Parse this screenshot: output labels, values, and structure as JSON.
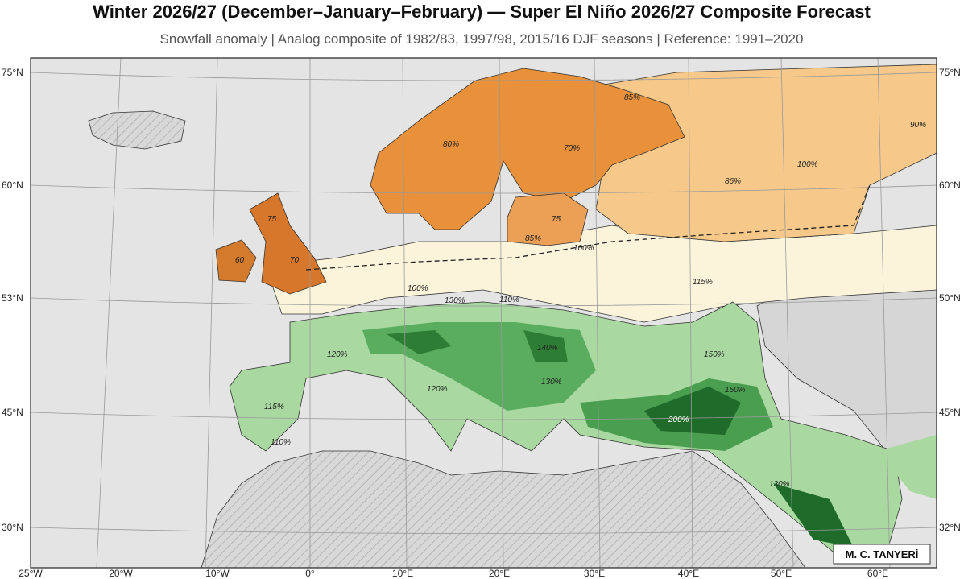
{
  "header": {
    "title": "Winter 2026/27 (December–January–February) — Super El Niño 2026/27 Composite Forecast",
    "subtitle": "Snowfall anomaly | Analog composite of 1982/83, 1997/98, 2015/16 DJF seasons | Reference: 1991–2020"
  },
  "map": {
    "lat_labels_left": [
      "75°N",
      "60°N",
      "53°N",
      "45°N",
      "30°N"
    ],
    "lat_labels_right": [
      "75°N",
      "60°N",
      "50°N",
      "45°N",
      "32°N"
    ],
    "lon_labels": [
      "25°W",
      "20°W",
      "10°W",
      "0°",
      "10°E",
      "20°E",
      "30°E",
      "40°E",
      "50°E",
      "60°E"
    ],
    "contour_labels": [
      "85%",
      "90%",
      "80%",
      "70%",
      "100%",
      "86%",
      "75",
      "75",
      "85%",
      "100%",
      "60",
      "70",
      "115%",
      "100%",
      "130%",
      "110%",
      "140%",
      "120%",
      "150%",
      "130%",
      "150%",
      "120%",
      "115%",
      "200%",
      "110%",
      "130%"
    ],
    "credit": "M. C. TANYERİ"
  }
}
